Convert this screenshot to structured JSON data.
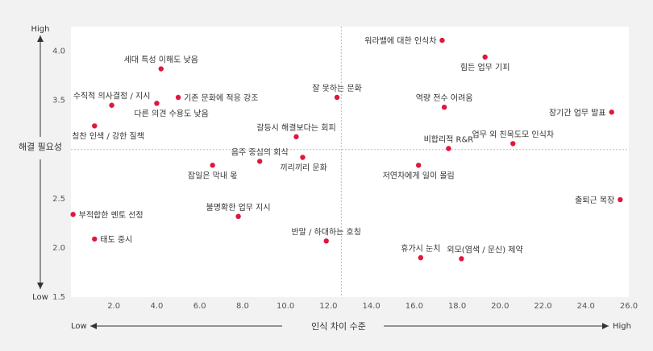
{
  "chart_data": {
    "type": "scatter",
    "title": "",
    "xlabel": "인식 차이 수준",
    "ylabel": "해결 필요성",
    "x_low_label": "Low",
    "x_high_label": "High",
    "y_low_label": "Low",
    "y_high_label": "High",
    "xlim": [
      0.0,
      26.0
    ],
    "ylim": [
      1.5,
      4.25
    ],
    "x_ticks": [
      "2.0",
      "4.0",
      "6.0",
      "8.0",
      "10.0",
      "12.0",
      "14.0",
      "16.0",
      "18.0",
      "20.0",
      "22.0",
      "24.0",
      "26.0"
    ],
    "x_tick_values": [
      2,
      4,
      6,
      8,
      10,
      12,
      14,
      16,
      18,
      20,
      22,
      24,
      26
    ],
    "y_ticks": [
      "1.5",
      "2.0",
      "2.5",
      "3.5",
      "4.0"
    ],
    "y_tick_values": [
      1.5,
      2.0,
      2.5,
      3.5,
      4.0
    ],
    "x_divider": 12.6,
    "y_divider": 3.0,
    "point_color": "#e0173b",
    "points": [
      {
        "label": "세대 특성 이해도 낮음",
        "x": 4.2,
        "y": 3.82,
        "pos": "above"
      },
      {
        "label": "수직적 의사결정 / 지시",
        "x": 1.9,
        "y": 3.45,
        "pos": "above"
      },
      {
        "label": "기존 문화에 적응 강조",
        "x": 5.0,
        "y": 3.53,
        "pos": "right"
      },
      {
        "label": "다른 의견 수용도 낮음",
        "x": 4.0,
        "y": 3.47,
        "pos": "below-right"
      },
      {
        "label": "칭찬 인색 / 강한 질책",
        "x": 1.1,
        "y": 3.24,
        "pos": "below-right"
      },
      {
        "label": "잘 못하는 문화",
        "x": 12.4,
        "y": 3.53,
        "pos": "above"
      },
      {
        "label": "갈등시 해결보다는 회피",
        "x": 10.5,
        "y": 3.13,
        "pos": "above"
      },
      {
        "label": "음주 중심의 회식",
        "x": 8.8,
        "y": 2.88,
        "pos": "above"
      },
      {
        "label": "끼리끼리 문화",
        "x": 10.8,
        "y": 2.92,
        "pos": "below-right"
      },
      {
        "label": "잡일은 막내 몫",
        "x": 6.6,
        "y": 2.84,
        "pos": "below"
      },
      {
        "label": "불명확한 업무 지시",
        "x": 7.8,
        "y": 2.32,
        "pos": "above"
      },
      {
        "label": "부적합한 멘토 선정",
        "x": 0.1,
        "y": 2.34,
        "pos": "right"
      },
      {
        "label": "태도 중시",
        "x": 1.1,
        "y": 2.09,
        "pos": "right"
      },
      {
        "label": "반말 / 하대하는 호칭",
        "x": 11.9,
        "y": 2.07,
        "pos": "above"
      },
      {
        "label": "워라밸에 대한 인식차",
        "x": 17.3,
        "y": 4.11,
        "pos": "left"
      },
      {
        "label": "힘든 업무 기피",
        "x": 19.3,
        "y": 3.94,
        "pos": "below"
      },
      {
        "label": "역량 전수 어려움",
        "x": 17.4,
        "y": 3.43,
        "pos": "above"
      },
      {
        "label": "장기간 업무 발표",
        "x": 25.2,
        "y": 3.38,
        "pos": "left"
      },
      {
        "label": "업무 외 친목도모 인식차",
        "x": 20.6,
        "y": 3.06,
        "pos": "above"
      },
      {
        "label": "비합리적 R&R",
        "x": 17.6,
        "y": 3.01,
        "pos": "above"
      },
      {
        "label": "저연차에게 일이 몰림",
        "x": 16.2,
        "y": 2.84,
        "pos": "below"
      },
      {
        "label": "출퇴근 복장",
        "x": 25.6,
        "y": 2.49,
        "pos": "left"
      },
      {
        "label": "휴가시 눈치",
        "x": 16.3,
        "y": 1.9,
        "pos": "above"
      },
      {
        "label": "외모(염색 / 문신) 제약",
        "x": 18.2,
        "y": 1.89,
        "pos": "above-right"
      }
    ]
  }
}
